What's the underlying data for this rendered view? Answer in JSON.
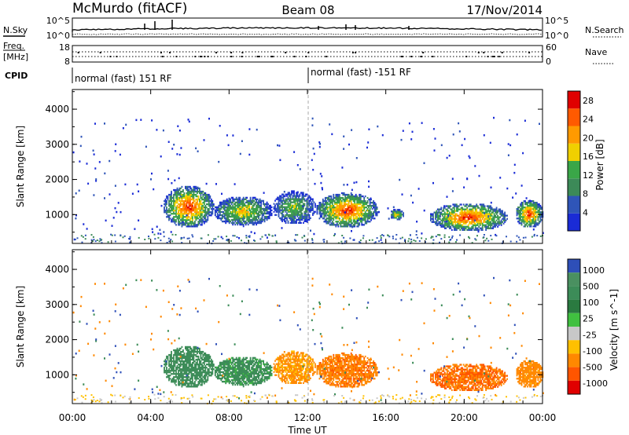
{
  "header": {
    "station": "McMurdo (fitACF)",
    "beam": "Beam 08",
    "date": "17/Nov/2014"
  },
  "top_panels": {
    "nsky_label": "N.Sky",
    "nsearch_label": "N.Search",
    "nsky_ticks": [
      "10^5",
      "10^0"
    ],
    "nsearch_ticks": [
      "10^5",
      "10^0"
    ],
    "freq_label": "Freq.",
    "freq_unit": "[MHz]",
    "freq_ticks": [
      "18",
      "8"
    ],
    "nave_label": "Nave",
    "nave_ticks": [
      "60",
      "0"
    ],
    "cpid_label": "CPID",
    "cpid_segments": [
      "normal (fast) 151 RF",
      "normal (fast) -151 RF"
    ]
  },
  "colors": {
    "power": [
      "#1a2bd6",
      "#2f55b8",
      "#3c8a58",
      "#3aa648",
      "#f0d000",
      "#ff9a00",
      "#ff5a00",
      "#e00000"
    ],
    "velocity": [
      "#2e4fb8",
      "#4a9060",
      "#3c8c58",
      "#2a7a40",
      "#40c040",
      "#c8c8c8",
      "#ffc000",
      "#ff8800",
      "#ff5500",
      "#e00000"
    ],
    "ground_scatter": "#c8c8c8"
  },
  "chart_data": [
    {
      "type": "heatmap",
      "xlabel": "Time UT",
      "ylabel": "Slant Range [km]",
      "x_ticks": [
        "00:00",
        "04:00",
        "08:00",
        "12:00",
        "16:00",
        "20:00",
        "00:00"
      ],
      "xlim_hours": [
        0,
        24
      ],
      "y_ticks": [
        1000,
        2000,
        3000,
        4000
      ],
      "ylim_km": [
        180,
        4560
      ],
      "colorbar_label": "Power [dB]",
      "colorbar_ticks": [
        4,
        8,
        12,
        16,
        20,
        24,
        28
      ],
      "colorbar_range": [
        0,
        30
      ],
      "echo_regions": [
        {
          "t0": 4.6,
          "t1": 7.2,
          "r0": 600,
          "r1": 1800,
          "peak_db": 28
        },
        {
          "t0": 7.2,
          "t1": 10.2,
          "r0": 650,
          "r1": 1500,
          "peak_db": 20
        },
        {
          "t0": 10.2,
          "t1": 12.4,
          "r0": 700,
          "r1": 1650,
          "peak_db": 16
        },
        {
          "t0": 12.4,
          "t1": 15.6,
          "r0": 600,
          "r1": 1600,
          "peak_db": 28
        },
        {
          "t0": 16.2,
          "t1": 16.9,
          "r0": 800,
          "r1": 1150,
          "peak_db": 20
        },
        {
          "t0": 18.2,
          "t1": 22.2,
          "r0": 500,
          "r1": 1300,
          "peak_db": 28
        },
        {
          "t0": 22.6,
          "t1": 24.0,
          "r0": 600,
          "r1": 1400,
          "peak_db": 28
        }
      ]
    },
    {
      "type": "heatmap",
      "xlabel": "Time UT",
      "ylabel": "Slant Range [km]",
      "x_ticks": [
        "00:00",
        "04:00",
        "08:00",
        "12:00",
        "16:00",
        "20:00",
        "00:00"
      ],
      "xlim_hours": [
        0,
        24
      ],
      "y_ticks": [
        1000,
        2000,
        3000,
        4000
      ],
      "ylim_km": [
        180,
        4560
      ],
      "colorbar_label": "Velocity [m s^-1]",
      "colorbar_ticks": [
        "1000",
        "500",
        "100",
        "25",
        "-25",
        "-100",
        "-500",
        "-1000"
      ],
      "echo_regions": [
        {
          "t0": 4.6,
          "t1": 7.2,
          "r0": 600,
          "r1": 1800,
          "velocity": 200
        },
        {
          "t0": 7.2,
          "t1": 10.2,
          "r0": 650,
          "r1": 1500,
          "velocity": 150
        },
        {
          "t0": 10.2,
          "t1": 12.4,
          "r0": 700,
          "r1": 1650,
          "velocity": -150
        },
        {
          "t0": 12.4,
          "t1": 15.6,
          "r0": 600,
          "r1": 1600,
          "velocity": -250
        },
        {
          "t0": 18.2,
          "t1": 22.2,
          "r0": 500,
          "r1": 1300,
          "velocity": -300
        },
        {
          "t0": 22.6,
          "t1": 24.0,
          "r0": 600,
          "r1": 1400,
          "velocity": -200
        }
      ]
    }
  ]
}
